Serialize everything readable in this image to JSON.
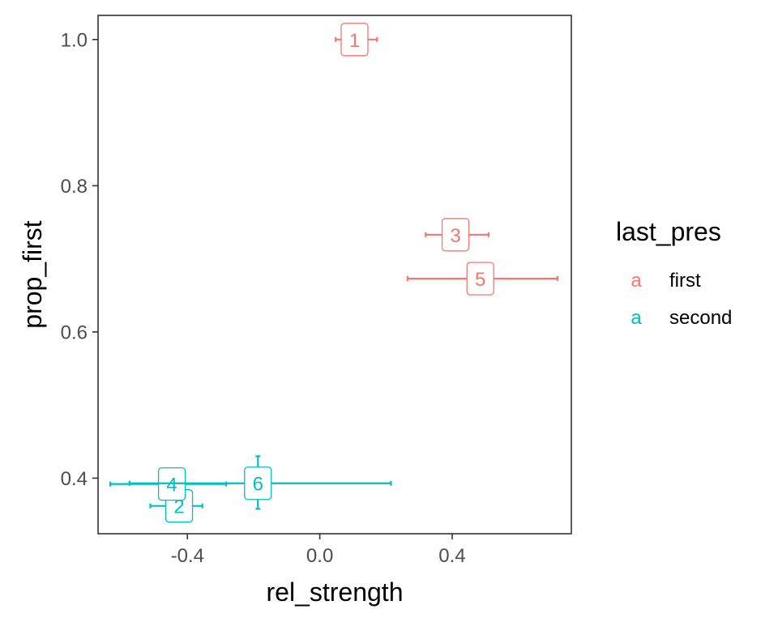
{
  "chart_data": {
    "type": "scatter",
    "title": "",
    "xlabel": "rel_strength",
    "ylabel": "prop_first",
    "xlim": [
      -0.67,
      0.76
    ],
    "ylim": [
      0.324,
      1.033
    ],
    "xticks": [
      {
        "value": -0.4,
        "label": "-0.4"
      },
      {
        "value": 0.0,
        "label": "0.0"
      },
      {
        "value": 0.4,
        "label": "0.4"
      }
    ],
    "yticks": [
      {
        "value": 0.4,
        "label": "0.4"
      },
      {
        "value": 0.6,
        "label": "0.6"
      },
      {
        "value": 0.8,
        "label": "0.8"
      },
      {
        "value": 1.0,
        "label": "1.0"
      }
    ],
    "grid": false,
    "legend": {
      "title": "last_pres",
      "position": "right",
      "key_glyph": "a",
      "entries": [
        {
          "name": "first",
          "color": "#F8766D"
        },
        {
          "name": "second",
          "color": "#00BFC4"
        }
      ]
    },
    "points": [
      {
        "label": "1",
        "group": "first",
        "x": 0.105,
        "y": 1.0,
        "xmin": 0.048,
        "xmax": 0.173,
        "ymin": null,
        "ymax": null
      },
      {
        "label": "2",
        "group": "second",
        "x": -0.425,
        "y": 0.362,
        "xmin": -0.512,
        "xmax": -0.355,
        "ymin": null,
        "ymax": null
      },
      {
        "label": "3",
        "group": "first",
        "x": 0.41,
        "y": 0.733,
        "xmin": 0.32,
        "xmax": 0.51,
        "ymin": null,
        "ymax": null
      },
      {
        "label": "4",
        "group": "second",
        "x": -0.447,
        "y": 0.392,
        "xmin": -0.633,
        "xmax": -0.283,
        "ymin": null,
        "ymax": null
      },
      {
        "label": "5",
        "group": "first",
        "x": 0.485,
        "y": 0.673,
        "xmin": 0.265,
        "xmax": 0.718,
        "ymin": null,
        "ymax": null
      },
      {
        "label": "6",
        "group": "second",
        "x": -0.187,
        "y": 0.393,
        "xmin": -0.575,
        "xmax": 0.215,
        "ymin": 0.358,
        "ymax": 0.43
      }
    ]
  }
}
